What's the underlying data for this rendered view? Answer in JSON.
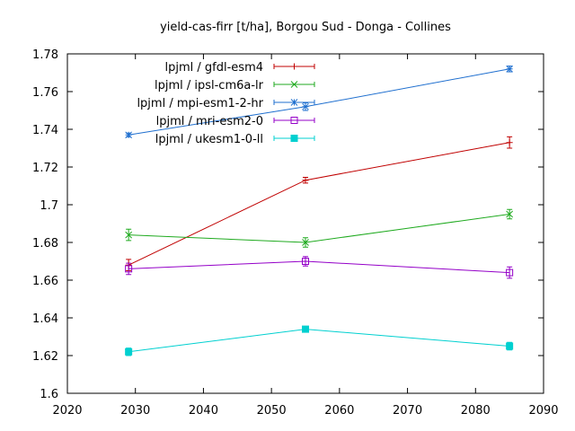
{
  "chart_data": {
    "type": "line",
    "title": "yield-cas-firr [t/ha], Borgou Sud - Donga - Collines",
    "xlabel": "",
    "ylabel": "",
    "xlim": [
      2020,
      2090
    ],
    "ylim": [
      1.6,
      1.78
    ],
    "xticks": [
      2020,
      2030,
      2040,
      2050,
      2060,
      2070,
      2080,
      2090
    ],
    "yticks": [
      1.6,
      1.62,
      1.64,
      1.66,
      1.68,
      1.7,
      1.72,
      1.74,
      1.76,
      1.78
    ],
    "xtick_labels": [
      "2020",
      "2030",
      "2040",
      "2050",
      "2060",
      "2070",
      "2080",
      "2090"
    ],
    "ytick_labels": [
      "1.6",
      "1.62",
      "1.64",
      "1.66",
      "1.68",
      "1.7",
      "1.72",
      "1.74",
      "1.76",
      "1.78"
    ],
    "grid": false,
    "legend": "top-left",
    "x": [
      2029,
      2055,
      2085
    ],
    "series": [
      {
        "name": "lpjml / gfdl-esm4",
        "color": "#c00000",
        "marker": "plus",
        "values": [
          1.668,
          1.713,
          1.733
        ],
        "errors": [
          0.003,
          0.0015,
          0.003
        ]
      },
      {
        "name": "lpjml / ipsl-cm6a-lr",
        "color": "#1faa1f",
        "marker": "cross",
        "values": [
          1.684,
          1.68,
          1.695
        ],
        "errors": [
          0.003,
          0.0025,
          0.0025
        ]
      },
      {
        "name": "lpjml / mpi-esm1-2-hr",
        "color": "#1f6fcf",
        "marker": "star",
        "values": [
          1.737,
          1.752,
          1.772
        ],
        "errors": [
          0.001,
          0.002,
          0.0015
        ]
      },
      {
        "name": "lpjml / mri-esm2-0",
        "color": "#9400c8",
        "marker": "square-open",
        "values": [
          1.666,
          1.67,
          1.664
        ],
        "errors": [
          0.003,
          0.0025,
          0.003
        ]
      },
      {
        "name": "lpjml / ukesm1-0-ll",
        "color": "#00d0d0",
        "marker": "square-filled",
        "values": [
          1.622,
          1.634,
          1.625
        ],
        "errors": [
          0.002,
          0.001,
          0.002
        ]
      }
    ]
  }
}
